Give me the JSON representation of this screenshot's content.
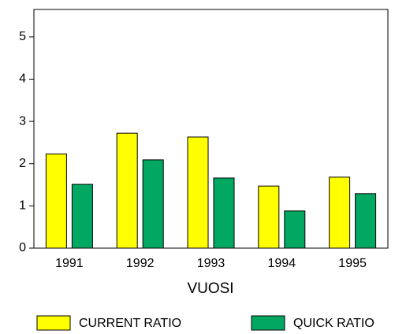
{
  "chart_data": {
    "type": "bar",
    "x_label": "VUOSI",
    "categories": [
      "1991",
      "1992",
      "1993",
      "1994",
      "1995"
    ],
    "series": [
      {
        "name": "CURRENT RATIO",
        "color": "#ffff00",
        "values": [
          2.23,
          2.72,
          2.63,
          1.47,
          1.68
        ]
      },
      {
        "name": "QUICK RATIO",
        "color": "#00a862",
        "values": [
          1.51,
          2.09,
          1.66,
          0.88,
          1.29
        ]
      }
    ],
    "ylim": [
      0,
      5.65
    ],
    "yticks": [
      0,
      1,
      2,
      3,
      4,
      5
    ],
    "grid": false,
    "legend": "bottom"
  }
}
